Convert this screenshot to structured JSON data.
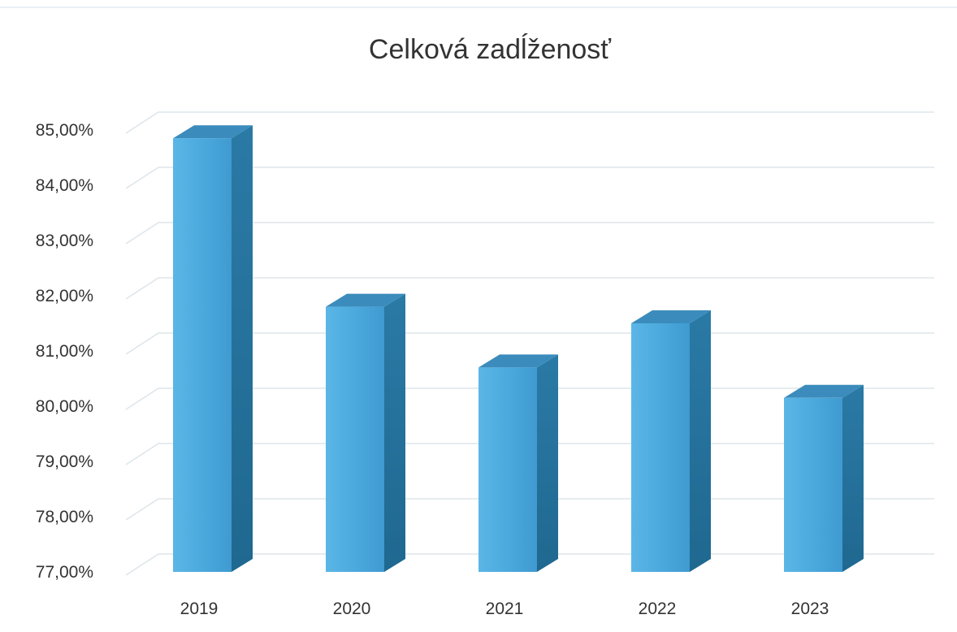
{
  "chart_data": {
    "type": "bar",
    "style": "3d-column",
    "title": "Celková zadĺženosť",
    "xlabel": "",
    "ylabel": "",
    "categories": [
      "2019",
      "2020",
      "2021",
      "2022",
      "2023"
    ],
    "values": [
      84.85,
      81.8,
      80.7,
      81.5,
      80.15
    ],
    "ylim": [
      77,
      85
    ],
    "y_ticks": [
      77,
      78,
      79,
      80,
      81,
      82,
      83,
      84,
      85
    ],
    "y_tick_labels": [
      "77,00%",
      "78,00%",
      "79,00%",
      "80,00%",
      "81,00%",
      "82,00%",
      "83,00%",
      "84,00%",
      "85,00%"
    ],
    "grid": true,
    "legend": "none",
    "colors": {
      "bar_front": "#4aa8dc",
      "bar_front_light": "#6cc0ec",
      "bar_side": "#236f98",
      "bar_top": "#3b8cbc",
      "grid": "#dde5ea",
      "text": "#333333"
    }
  }
}
